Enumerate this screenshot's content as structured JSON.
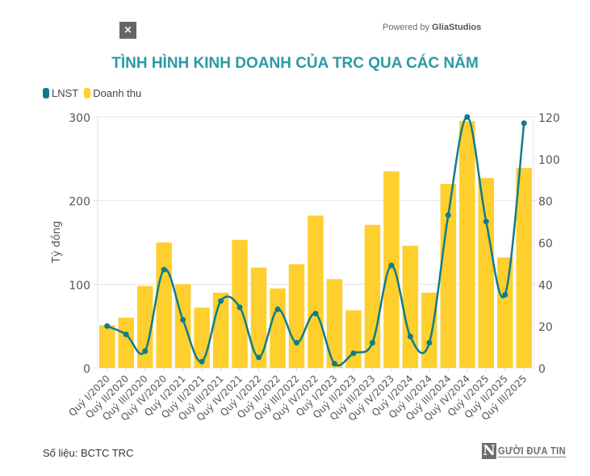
{
  "header": {
    "close_label": "×",
    "powered_prefix": "Powered by ",
    "powered_brand": "GliaStudios"
  },
  "footer": {
    "source": "Số liệu: BCTC TRC",
    "logo_letter": "N",
    "logo_text": "GƯỜI ĐƯA TIN"
  },
  "colors": {
    "title": "#2a9aa4",
    "lnst": "#0f7c8a",
    "revenue": "#ffcf2e",
    "grid": "#e6e6e6",
    "axis_text": "#555555"
  },
  "chart_data": {
    "type": "bar",
    "title": "TÌNH HÌNH KINH DOANH CỦA TRC QUA CÁC NĂM",
    "xlabel": "",
    "ylabel": "Tỷ đồng",
    "legend": [
      "LNST",
      "Doanh thu"
    ],
    "legend_position": "top-left",
    "grid": true,
    "categories": [
      "Quý I/2020",
      "Quý II/2020",
      "Quý III/2020",
      "Quý IV/2020",
      "Quý I/2021",
      "Quý II/2021",
      "Quý III/2021",
      "Quý IV/2021",
      "Quý I/2022",
      "Quý II/2022",
      "Quý III/2022",
      "Quý IV/2022",
      "Quý I/2023",
      "Quý II/2023",
      "Quý III/2023",
      "Quý IV/2023",
      "Quý I/2024",
      "Quý II/2024",
      "Quý III/2024",
      "Quý IV/2024",
      "Quý I/2025",
      "Quý II/2025",
      "Quý III/2025"
    ],
    "series": [
      {
        "name": "Doanh thu",
        "type": "bar",
        "axis": "left",
        "values": [
          51,
          60,
          98,
          150,
          100,
          72,
          90,
          153,
          120,
          95,
          124,
          182,
          106,
          69,
          171,
          235,
          146,
          90,
          220,
          295,
          227,
          132,
          239
        ]
      },
      {
        "name": "LNST",
        "type": "line",
        "axis": "right",
        "smooth": true,
        "values": [
          20,
          16,
          8,
          47,
          23,
          3,
          32,
          29,
          5,
          28,
          12,
          26,
          2,
          7,
          12,
          49,
          15,
          12,
          73,
          120,
          70,
          35,
          117
        ]
      }
    ],
    "y_left": {
      "range": [
        0,
        300
      ],
      "ticks": [
        0,
        100,
        200,
        300
      ]
    },
    "y_right": {
      "range": [
        0,
        120
      ],
      "ticks": [
        0,
        20,
        40,
        60,
        80,
        100,
        120
      ]
    }
  }
}
